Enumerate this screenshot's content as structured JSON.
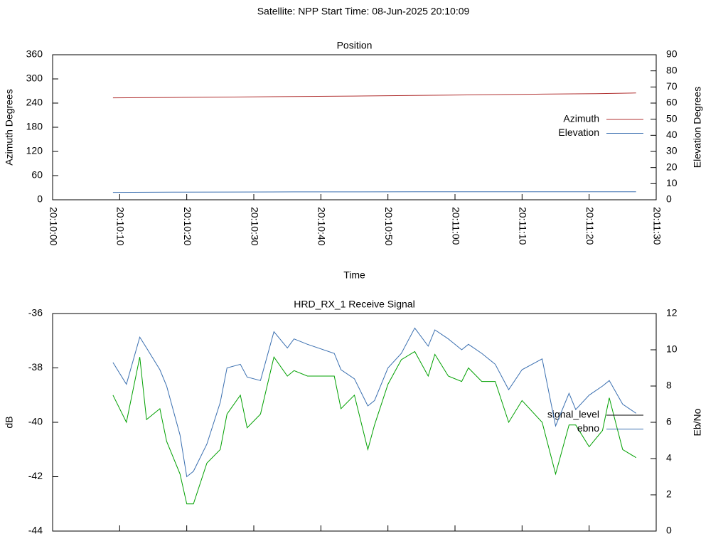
{
  "title": "Satellite: NPP    Start Time: 08-Jun-2025 20:10:09",
  "chart_data": [
    {
      "type": "line",
      "title": "Position",
      "xlabel": "Time",
      "ylabel": "Azimuth Degrees",
      "y2label": "Elevation Degrees",
      "x": [
        "20:10:09",
        "20:10:18",
        "20:10:27",
        "20:10:36",
        "20:10:45",
        "20:10:54",
        "20:11:03",
        "20:11:12",
        "20:11:21",
        "20:11:27"
      ],
      "series": [
        {
          "name": "Azimuth",
          "color": "#b03030",
          "values": [
            253,
            254,
            255,
            256.5,
            257.5,
            259,
            260.5,
            262,
            263.5,
            265
          ]
        },
        {
          "name": "Elevation",
          "color": "#3a6fb0",
          "axis": "y2",
          "values": [
            4.6,
            4.7,
            4.8,
            4.9,
            4.9,
            5.0,
            5.0,
            5.0,
            5.0,
            5.0
          ]
        }
      ],
      "xlim": [
        "20:10:00",
        "20:11:30"
      ],
      "xticks": [
        "20:10:00",
        "20:10:10",
        "20:10:20",
        "20:10:30",
        "20:10:40",
        "20:10:50",
        "20:11:00",
        "20:11:10",
        "20:11:20",
        "20:11:30"
      ],
      "show_xtick_labels": true,
      "ylim": [
        0,
        360
      ],
      "yticks": [
        0,
        60,
        120,
        180,
        240,
        300,
        360
      ],
      "y2lim": [
        0,
        90
      ],
      "y2ticks": [
        0,
        10,
        20,
        30,
        40,
        50,
        60,
        70,
        80,
        90
      ],
      "grid": false,
      "legend": "right"
    },
    {
      "type": "line",
      "title": "HRD_RX_1 Receive Signal",
      "ylabel": "dB",
      "y2label": "Eb/No",
      "x": [
        "20:10:09",
        "20:10:11",
        "20:10:13",
        "20:10:14",
        "20:10:16",
        "20:10:17",
        "20:10:19",
        "20:10:20",
        "20:10:21",
        "20:10:23",
        "20:10:25",
        "20:10:26",
        "20:10:28",
        "20:10:29",
        "20:10:31",
        "20:10:33",
        "20:10:35",
        "20:10:36",
        "20:10:38",
        "20:10:42",
        "20:10:43",
        "20:10:45",
        "20:10:47",
        "20:10:48",
        "20:10:50",
        "20:10:52",
        "20:10:54",
        "20:10:56",
        "20:10:57",
        "20:10:59",
        "20:11:01",
        "20:11:02",
        "20:11:04",
        "20:11:06",
        "20:11:08",
        "20:11:10",
        "20:11:13",
        "20:11:15",
        "20:11:17",
        "20:11:18",
        "20:11:20",
        "20:11:22",
        "20:11:23",
        "20:11:25",
        "20:11:27"
      ],
      "series": [
        {
          "name": "signal_level",
          "color": "#00a000",
          "legend_color": "#000000",
          "values": [
            -39.0,
            -40.0,
            -37.6,
            -39.9,
            -39.5,
            -40.7,
            -41.9,
            -43.0,
            -43.0,
            -41.5,
            -41.0,
            -39.7,
            -39.0,
            -40.2,
            -39.7,
            -37.6,
            -38.3,
            -38.1,
            -38.3,
            -38.3,
            -39.5,
            -39.0,
            -41.0,
            -40.1,
            -38.6,
            -37.7,
            -37.4,
            -38.3,
            -37.5,
            -38.3,
            -38.5,
            -38.0,
            -38.5,
            -38.5,
            -40.0,
            -39.2,
            -40.0,
            -41.9,
            -40.1,
            -40.1,
            -40.9,
            -40.3,
            -39.1,
            -41.0,
            -41.3
          ]
        },
        {
          "name": "ebno",
          "color": "#3a6fb0",
          "axis": "y2",
          "values": [
            9.3,
            8.1,
            10.7,
            10.1,
            8.9,
            8.0,
            5.3,
            3.0,
            3.3,
            4.8,
            7.1,
            9.0,
            9.2,
            8.5,
            8.3,
            11.0,
            10.1,
            10.6,
            10.3,
            9.8,
            8.9,
            8.4,
            6.9,
            7.2,
            9.0,
            9.8,
            11.2,
            10.2,
            11.1,
            10.6,
            10.0,
            10.3,
            9.8,
            9.2,
            7.8,
            8.9,
            9.5,
            5.8,
            7.6,
            6.7,
            7.5,
            8.0,
            8.3,
            7.0,
            6.5
          ]
        }
      ],
      "xlim": [
        "20:10:00",
        "20:11:30"
      ],
      "xticks": [
        "20:10:00",
        "20:10:10",
        "20:10:20",
        "20:10:30",
        "20:10:40",
        "20:10:50",
        "20:11:00",
        "20:11:10",
        "20:11:20",
        "20:11:30"
      ],
      "show_xtick_labels": false,
      "ylim": [
        -44,
        -36
      ],
      "yticks": [
        -44,
        -42,
        -40,
        -38,
        -36
      ],
      "y2lim": [
        0,
        12
      ],
      "y2ticks": [
        0,
        2,
        4,
        6,
        8,
        10,
        12
      ],
      "grid": false,
      "legend": "right"
    }
  ]
}
